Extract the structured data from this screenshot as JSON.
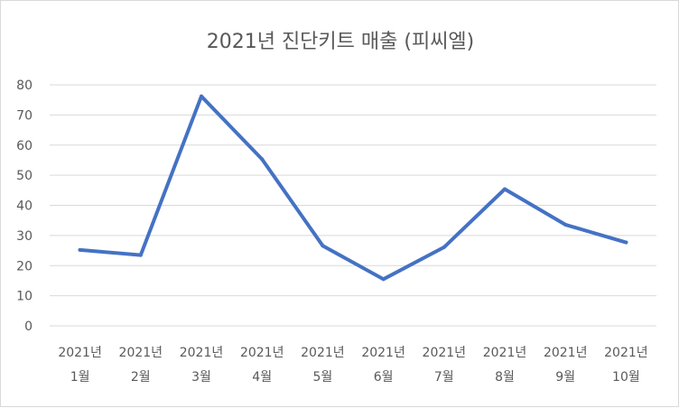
{
  "chart_data": {
    "type": "line",
    "title": "2021년 진단키트 매출 (피씨엘)",
    "xlabel": "",
    "ylabel": "",
    "categories": [
      [
        "2021년",
        "1월"
      ],
      [
        "2021년",
        "2월"
      ],
      [
        "2021년",
        "3월"
      ],
      [
        "2021년",
        "4월"
      ],
      [
        "2021년",
        "5월"
      ],
      [
        "2021년",
        "6월"
      ],
      [
        "2021년",
        "7월"
      ],
      [
        "2021년",
        "8월"
      ],
      [
        "2021년",
        "9월"
      ],
      [
        "2021년",
        "10월"
      ]
    ],
    "series": [
      {
        "values": [
          25.2,
          23.5,
          76.2,
          55.3,
          26.6,
          15.5,
          26.1,
          45.4,
          33.6,
          27.7
        ]
      }
    ],
    "ylim": [
      0,
      80
    ],
    "yticks": [
      0,
      10,
      20,
      30,
      40,
      50,
      60,
      70,
      80
    ],
    "grid": true,
    "legend": "none",
    "colors": {
      "line": "#4472c4",
      "grid": "#d9d9d9",
      "text": "#595959"
    }
  }
}
